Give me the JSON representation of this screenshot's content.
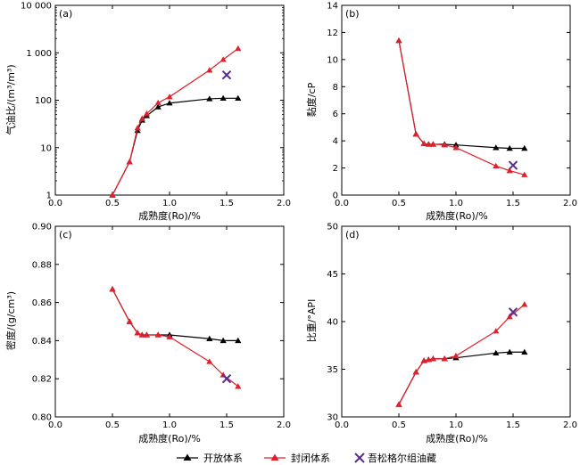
{
  "colors": {
    "open": "#000000",
    "closed": "#e0202c",
    "field": "#5a2d91"
  },
  "legend": {
    "open": "开放体系",
    "closed": "封闭体系",
    "field": "吾松格尔组油藏"
  },
  "chart_data": [
    {
      "id": "a",
      "panel_label": "(a)",
      "type": "line",
      "xlabel": "成熟度(Ro)/%",
      "ylabel": "气油比/(m³/m³)",
      "xlim": [
        0,
        2
      ],
      "ylim": [
        1,
        10000
      ],
      "yscale": "log",
      "xticks": [
        0,
        0.5,
        1,
        1.5,
        2
      ],
      "xtick_labels": [
        "0.0",
        "0.5",
        "1.0",
        "1.5",
        "2.0"
      ],
      "yticks": [
        1,
        10,
        100,
        1000,
        10000
      ],
      "ytick_labels": [
        "1",
        "10",
        "100",
        "1 000",
        "10 000"
      ],
      "series": [
        {
          "name": "开放体系",
          "marker": "triangle",
          "x": [
            0.5,
            0.65,
            0.72,
            0.76,
            0.8,
            0.9,
            1.0,
            1.35,
            1.47,
            1.6
          ],
          "y": [
            1,
            5,
            23,
            38,
            47,
            72,
            87,
            107,
            110,
            110
          ]
        },
        {
          "name": "封闭体系",
          "marker": "triangle",
          "x": [
            0.5,
            0.65,
            0.72,
            0.76,
            0.8,
            0.9,
            1.0,
            1.35,
            1.47,
            1.6
          ],
          "y": [
            1,
            5,
            26,
            41,
            52,
            88,
            118,
            430,
            720,
            1230
          ]
        },
        {
          "name": "吾松格尔组油藏",
          "marker": "x",
          "x": [
            1.5
          ],
          "y": [
            340
          ]
        }
      ]
    },
    {
      "id": "b",
      "panel_label": "(b)",
      "type": "line",
      "xlabel": "成熟度(Ro)/%",
      "ylabel": "黏度/cP",
      "xlim": [
        0,
        2
      ],
      "ylim": [
        0,
        14
      ],
      "xticks": [
        0,
        0.5,
        1,
        1.5,
        2
      ],
      "xtick_labels": [
        "0.0",
        "0.5",
        "1.0",
        "1.5",
        "2.0"
      ],
      "yticks": [
        0,
        2,
        4,
        6,
        8,
        10,
        12,
        14
      ],
      "ytick_labels": [
        "0",
        "2",
        "4",
        "6",
        "8",
        "10",
        "12",
        "14"
      ],
      "series": [
        {
          "name": "开放体系",
          "marker": "triangle",
          "x": [
            0.5,
            0.65,
            0.72,
            0.76,
            0.8,
            0.9,
            1.0,
            1.35,
            1.47,
            1.6
          ],
          "y": [
            11.4,
            4.5,
            3.8,
            3.75,
            3.75,
            3.75,
            3.7,
            3.5,
            3.45,
            3.45
          ]
        },
        {
          "name": "封闭体系",
          "marker": "triangle",
          "x": [
            0.5,
            0.65,
            0.72,
            0.76,
            0.8,
            0.9,
            1.0,
            1.35,
            1.47,
            1.6
          ],
          "y": [
            11.4,
            4.5,
            3.8,
            3.75,
            3.75,
            3.7,
            3.5,
            2.15,
            1.8,
            1.5
          ]
        },
        {
          "name": "吾松格尔组油藏",
          "marker": "x",
          "x": [
            1.5
          ],
          "y": [
            2.2
          ]
        }
      ]
    },
    {
      "id": "c",
      "panel_label": "(c)",
      "type": "line",
      "xlabel": "成熟度(Ro)/%",
      "ylabel": "密度/(g/cm³)",
      "xlim": [
        0,
        2
      ],
      "ylim": [
        0.8,
        0.9
      ],
      "xticks": [
        0,
        0.5,
        1,
        1.5,
        2
      ],
      "xtick_labels": [
        "0.0",
        "0.5",
        "1.0",
        "1.5",
        "2.0"
      ],
      "yticks": [
        0.8,
        0.82,
        0.84,
        0.86,
        0.88,
        0.9
      ],
      "ytick_labels": [
        "0.80",
        "0.82",
        "0.84",
        "0.86",
        "0.88",
        "0.90"
      ],
      "series": [
        {
          "name": "开放体系",
          "marker": "triangle",
          "x": [
            0.5,
            0.65,
            0.72,
            0.76,
            0.8,
            0.9,
            1.0,
            1.35,
            1.47,
            1.6
          ],
          "y": [
            0.867,
            0.85,
            0.844,
            0.843,
            0.843,
            0.843,
            0.843,
            0.841,
            0.84,
            0.84
          ]
        },
        {
          "name": "封闭体系",
          "marker": "triangle",
          "x": [
            0.5,
            0.65,
            0.72,
            0.76,
            0.8,
            0.9,
            1.0,
            1.35,
            1.47,
            1.6
          ],
          "y": [
            0.867,
            0.85,
            0.844,
            0.843,
            0.843,
            0.843,
            0.842,
            0.829,
            0.822,
            0.816
          ]
        },
        {
          "name": "吾松格尔组油藏",
          "marker": "x",
          "x": [
            1.5
          ],
          "y": [
            0.82
          ]
        }
      ]
    },
    {
      "id": "d",
      "panel_label": "(d)",
      "type": "line",
      "xlabel": "成熟度(Ro)/%",
      "ylabel": "比重/°API",
      "xlim": [
        0,
        2
      ],
      "ylim": [
        30,
        50
      ],
      "xticks": [
        0,
        0.5,
        1,
        1.5,
        2
      ],
      "xtick_labels": [
        "0.0",
        "0.5",
        "1.0",
        "1.5",
        "2.0"
      ],
      "yticks": [
        30,
        35,
        40,
        45,
        50
      ],
      "ytick_labels": [
        "30",
        "35",
        "40",
        "45",
        "50"
      ],
      "series": [
        {
          "name": "开放体系",
          "marker": "triangle",
          "x": [
            0.5,
            0.65,
            0.72,
            0.76,
            0.8,
            0.9,
            1.0,
            1.35,
            1.47,
            1.6
          ],
          "y": [
            31.3,
            34.7,
            35.9,
            36.0,
            36.1,
            36.1,
            36.2,
            36.7,
            36.8,
            36.8
          ]
        },
        {
          "name": "封闭体系",
          "marker": "triangle",
          "x": [
            0.5,
            0.65,
            0.72,
            0.76,
            0.8,
            0.9,
            1.0,
            1.35,
            1.47,
            1.6
          ],
          "y": [
            31.3,
            34.7,
            35.9,
            36.0,
            36.1,
            36.1,
            36.4,
            39.0,
            40.5,
            41.8
          ]
        },
        {
          "name": "吾松格尔组油藏",
          "marker": "x",
          "x": [
            1.5
          ],
          "y": [
            41.0
          ]
        }
      ]
    }
  ]
}
